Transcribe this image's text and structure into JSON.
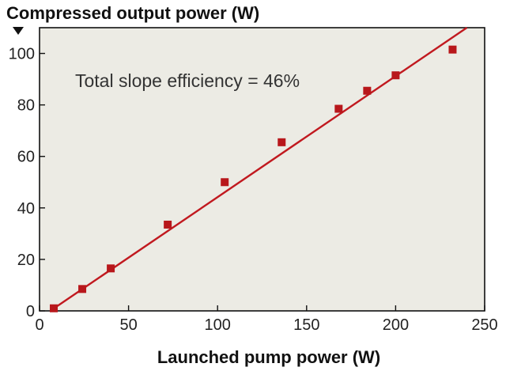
{
  "chart_data": {
    "type": "scatter",
    "title": "Compressed output power (W)",
    "xlabel": "Launched pump power (W)",
    "ylabel": "",
    "annotation": "Total slope efficiency = 46%",
    "xlim": [
      0,
      250
    ],
    "ylim": [
      0,
      110
    ],
    "xticks": [
      "0",
      "50",
      "100",
      "150",
      "200",
      "250"
    ],
    "yticks": [
      "0",
      "20",
      "40",
      "60",
      "80",
      "100"
    ],
    "grid": false,
    "legend": "none",
    "series": [
      {
        "x": [
          8,
          24,
          40,
          72,
          104,
          136,
          168,
          184,
          200,
          232
        ],
        "y": [
          1,
          8.5,
          16.5,
          33.5,
          50,
          65.5,
          78.5,
          85.5,
          91.5,
          101.5
        ]
      }
    ],
    "fit_line": {
      "slope_label": "46%",
      "x": [
        6,
        240
      ],
      "y": [
        0,
        110
      ]
    },
    "colors": {
      "plot_background": "#ecebe4",
      "marker": "#b8171b",
      "fit_line": "#c1191f",
      "axis": "#111111",
      "text": "#111111"
    }
  }
}
